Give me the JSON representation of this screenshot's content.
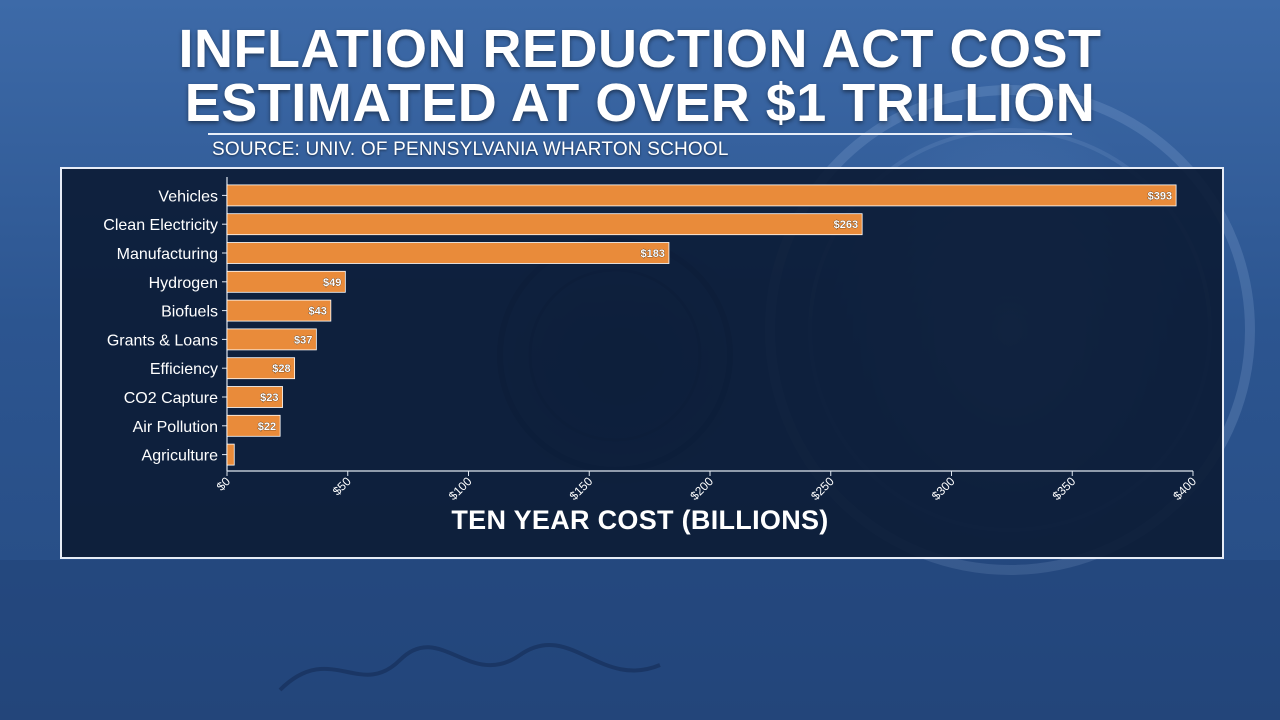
{
  "title": {
    "line1": "INFLATION REDUCTION ACT COST",
    "line2": "ESTIMATED AT OVER $1 TRILLION"
  },
  "source": "SOURCE: UNIV. OF PENNSYLVANIA WHARTON SCHOOL",
  "colors": {
    "bar": "#e98b3a",
    "panel_bg": "#0b1b34",
    "text": "#ffffff"
  },
  "chart_data": {
    "type": "bar",
    "orientation": "horizontal",
    "title": "INFLATION REDUCTION ACT COST ESTIMATED AT OVER $1 TRILLION",
    "xlabel": "TEN YEAR COST (BILLIONS)",
    "ylabel": "",
    "categories": [
      "Vehicles",
      "Clean Electricity",
      "Manufacturing",
      "Hydrogen",
      "Biofuels",
      "Grants & Loans",
      "Efficiency",
      "CO2 Capture",
      "Air Pollution",
      "Agriculture"
    ],
    "values": [
      393,
      263,
      183,
      49,
      43,
      37,
      28,
      23,
      22,
      3
    ],
    "data_labels": [
      "$393",
      "$263",
      "$183",
      "$49",
      "$43",
      "$37",
      "$28",
      "$23",
      "$22",
      ""
    ],
    "xlim": [
      0,
      400
    ],
    "xticks": [
      0,
      50,
      100,
      150,
      200,
      250,
      300,
      350,
      400
    ],
    "xtick_labels": [
      "$0",
      "$50",
      "$100",
      "$150",
      "$200",
      "$250",
      "$300",
      "$350",
      "$400"
    ],
    "grid": false
  }
}
